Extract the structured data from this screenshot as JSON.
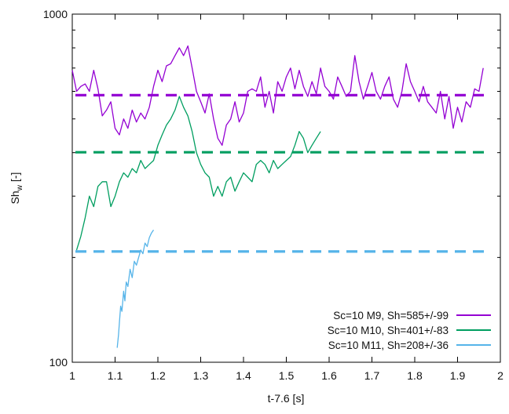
{
  "chart_data": {
    "type": "line",
    "xlabel": "t-7.6 [s]",
    "ylabel": "Sh",
    "ylabel_subscript": "w",
    "ylabel_unit": "[-]",
    "xlim": [
      1,
      2
    ],
    "ylim": [
      100,
      1000
    ],
    "yscale": "log",
    "grid": false,
    "legend_position": "bottom-right",
    "x_ticks": [
      "1",
      "1.1",
      "1.2",
      "1.3",
      "1.4",
      "1.5",
      "1.6",
      "1.7",
      "1.8",
      "1.9",
      "2"
    ],
    "y_ticks": [
      "100",
      "1000"
    ],
    "series": [
      {
        "name": "Sc=10 M9, Sh=585+/-99",
        "color": "#9400d3",
        "mean": 585,
        "points": [
          [
            1.0,
            690
          ],
          [
            1.01,
            600
          ],
          [
            1.02,
            620
          ],
          [
            1.03,
            630
          ],
          [
            1.04,
            600
          ],
          [
            1.05,
            690
          ],
          [
            1.06,
            610
          ],
          [
            1.07,
            510
          ],
          [
            1.08,
            530
          ],
          [
            1.09,
            560
          ],
          [
            1.1,
            470
          ],
          [
            1.11,
            450
          ],
          [
            1.12,
            500
          ],
          [
            1.13,
            470
          ],
          [
            1.14,
            530
          ],
          [
            1.15,
            490
          ],
          [
            1.16,
            520
          ],
          [
            1.17,
            500
          ],
          [
            1.18,
            540
          ],
          [
            1.19,
            620
          ],
          [
            1.2,
            690
          ],
          [
            1.21,
            640
          ],
          [
            1.22,
            710
          ],
          [
            1.23,
            720
          ],
          [
            1.24,
            760
          ],
          [
            1.25,
            800
          ],
          [
            1.26,
            760
          ],
          [
            1.27,
            810
          ],
          [
            1.28,
            700
          ],
          [
            1.29,
            600
          ],
          [
            1.3,
            560
          ],
          [
            1.31,
            520
          ],
          [
            1.32,
            590
          ],
          [
            1.33,
            500
          ],
          [
            1.34,
            440
          ],
          [
            1.35,
            420
          ],
          [
            1.36,
            480
          ],
          [
            1.37,
            500
          ],
          [
            1.38,
            560
          ],
          [
            1.39,
            490
          ],
          [
            1.4,
            520
          ],
          [
            1.41,
            600
          ],
          [
            1.42,
            610
          ],
          [
            1.43,
            600
          ],
          [
            1.44,
            660
          ],
          [
            1.45,
            540
          ],
          [
            1.46,
            600
          ],
          [
            1.47,
            520
          ],
          [
            1.48,
            640
          ],
          [
            1.49,
            600
          ],
          [
            1.5,
            660
          ],
          [
            1.51,
            700
          ],
          [
            1.52,
            610
          ],
          [
            1.53,
            690
          ],
          [
            1.54,
            620
          ],
          [
            1.55,
            580
          ],
          [
            1.56,
            640
          ],
          [
            1.57,
            590
          ],
          [
            1.58,
            700
          ],
          [
            1.59,
            620
          ],
          [
            1.6,
            600
          ],
          [
            1.61,
            570
          ],
          [
            1.62,
            660
          ],
          [
            1.63,
            620
          ],
          [
            1.64,
            580
          ],
          [
            1.65,
            600
          ],
          [
            1.66,
            760
          ],
          [
            1.67,
            640
          ],
          [
            1.68,
            570
          ],
          [
            1.69,
            620
          ],
          [
            1.7,
            680
          ],
          [
            1.71,
            600
          ],
          [
            1.72,
            570
          ],
          [
            1.73,
            620
          ],
          [
            1.74,
            660
          ],
          [
            1.75,
            570
          ],
          [
            1.76,
            540
          ],
          [
            1.77,
            600
          ],
          [
            1.78,
            720
          ],
          [
            1.79,
            640
          ],
          [
            1.8,
            600
          ],
          [
            1.81,
            560
          ],
          [
            1.82,
            620
          ],
          [
            1.83,
            560
          ],
          [
            1.84,
            540
          ],
          [
            1.85,
            520
          ],
          [
            1.86,
            600
          ],
          [
            1.87,
            500
          ],
          [
            1.88,
            580
          ],
          [
            1.89,
            470
          ],
          [
            1.9,
            540
          ],
          [
            1.91,
            490
          ],
          [
            1.92,
            560
          ],
          [
            1.93,
            540
          ],
          [
            1.94,
            610
          ],
          [
            1.95,
            600
          ],
          [
            1.96,
            700
          ]
        ]
      },
      {
        "name": "Sc=10 M10, Sh=401+/-83",
        "color": "#009e60",
        "mean": 401,
        "points": [
          [
            1.01,
            210
          ],
          [
            1.02,
            230
          ],
          [
            1.03,
            260
          ],
          [
            1.04,
            300
          ],
          [
            1.05,
            280
          ],
          [
            1.06,
            320
          ],
          [
            1.07,
            330
          ],
          [
            1.08,
            330
          ],
          [
            1.09,
            280
          ],
          [
            1.1,
            300
          ],
          [
            1.11,
            330
          ],
          [
            1.12,
            350
          ],
          [
            1.13,
            340
          ],
          [
            1.14,
            360
          ],
          [
            1.15,
            350
          ],
          [
            1.16,
            380
          ],
          [
            1.17,
            360
          ],
          [
            1.18,
            370
          ],
          [
            1.19,
            380
          ],
          [
            1.2,
            420
          ],
          [
            1.21,
            450
          ],
          [
            1.22,
            480
          ],
          [
            1.23,
            500
          ],
          [
            1.24,
            530
          ],
          [
            1.25,
            580
          ],
          [
            1.26,
            540
          ],
          [
            1.27,
            510
          ],
          [
            1.28,
            460
          ],
          [
            1.29,
            400
          ],
          [
            1.3,
            370
          ],
          [
            1.31,
            350
          ],
          [
            1.32,
            340
          ],
          [
            1.33,
            300
          ],
          [
            1.34,
            320
          ],
          [
            1.35,
            300
          ],
          [
            1.36,
            330
          ],
          [
            1.37,
            340
          ],
          [
            1.38,
            310
          ],
          [
            1.39,
            330
          ],
          [
            1.4,
            350
          ],
          [
            1.41,
            340
          ],
          [
            1.42,
            330
          ],
          [
            1.43,
            370
          ],
          [
            1.44,
            380
          ],
          [
            1.45,
            370
          ],
          [
            1.46,
            350
          ],
          [
            1.47,
            380
          ],
          [
            1.48,
            360
          ],
          [
            1.49,
            370
          ],
          [
            1.5,
            380
          ],
          [
            1.51,
            390
          ],
          [
            1.52,
            420
          ],
          [
            1.53,
            460
          ],
          [
            1.54,
            440
          ],
          [
            1.55,
            400
          ],
          [
            1.56,
            420
          ],
          [
            1.57,
            440
          ],
          [
            1.58,
            460
          ]
        ]
      },
      {
        "name": "Sc=10 M11, Sh=208+/-36",
        "color": "#56b4e9",
        "mean": 208,
        "points": [
          [
            1.105,
            110
          ],
          [
            1.108,
            120
          ],
          [
            1.11,
            130
          ],
          [
            1.113,
            145
          ],
          [
            1.116,
            140
          ],
          [
            1.12,
            160
          ],
          [
            1.123,
            150
          ],
          [
            1.126,
            170
          ],
          [
            1.13,
            165
          ],
          [
            1.135,
            185
          ],
          [
            1.14,
            175
          ],
          [
            1.145,
            195
          ],
          [
            1.15,
            190
          ],
          [
            1.155,
            200
          ],
          [
            1.16,
            210
          ],
          [
            1.165,
            205
          ],
          [
            1.17,
            220
          ],
          [
            1.175,
            215
          ],
          [
            1.18,
            228
          ],
          [
            1.185,
            235
          ],
          [
            1.19,
            240
          ]
        ]
      }
    ]
  }
}
